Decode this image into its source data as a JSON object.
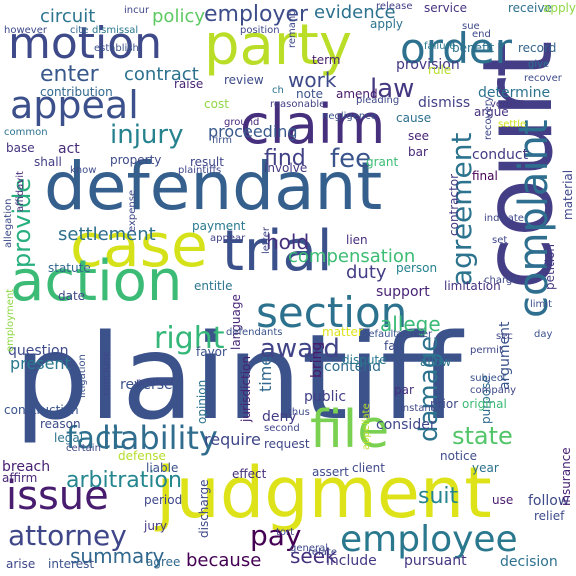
{
  "words": [
    {
      "text": "plaintiff",
      "color": "#3b528b"
    },
    {
      "text": "defendant",
      "color": "#355f8d"
    },
    {
      "text": "judgment",
      "color": "#dde318"
    },
    {
      "text": "court",
      "color": "#433e85"
    },
    {
      "text": "case",
      "color": "#d5e21a"
    },
    {
      "text": "trial",
      "color": "#3b518b"
    },
    {
      "text": "action",
      "color": "#3bbb75"
    },
    {
      "text": "claim",
      "color": "#46307e"
    },
    {
      "text": "party",
      "color": "#bade28"
    },
    {
      "text": "motion",
      "color": "#3e4a89"
    },
    {
      "text": "appeal",
      "color": "#3c508b"
    },
    {
      "text": "section",
      "color": "#2c728e"
    },
    {
      "text": "file",
      "color": "#7ad151"
    },
    {
      "text": "order",
      "color": "#2d718e"
    },
    {
      "text": "employee",
      "color": "#2a788e"
    },
    {
      "text": "issue",
      "color": "#481c6e"
    },
    {
      "text": "liability",
      "color": "#2f6c8e"
    },
    {
      "text": "complaint",
      "color": "#2e6e8e"
    },
    {
      "text": "agreement",
      "color": "#2c738e"
    },
    {
      "text": "damage",
      "color": "#2c738e"
    },
    {
      "text": "attorney",
      "color": "#3f4788"
    },
    {
      "text": "fact",
      "color": "#2e6f8e"
    },
    {
      "text": "right",
      "color": "#35b779"
    },
    {
      "text": "provide",
      "color": "#29af7f"
    },
    {
      "text": "award",
      "color": "#414487"
    },
    {
      "text": "injury",
      "color": "#26828e"
    },
    {
      "text": "fee",
      "color": "#3a548c"
    },
    {
      "text": "law",
      "color": "#453781"
    },
    {
      "text": "state",
      "color": "#52c569"
    },
    {
      "text": "pay",
      "color": "#440154"
    },
    {
      "text": "settlement",
      "color": "#2d708e"
    },
    {
      "text": "arbitration",
      "color": "#24868e"
    },
    {
      "text": "summary",
      "color": "#31688e"
    },
    {
      "text": "enter",
      "color": "#38588c"
    },
    {
      "text": "find",
      "color": "#424186"
    },
    {
      "text": "hold",
      "color": "#46307e"
    },
    {
      "text": "work",
      "color": "#3e4989"
    },
    {
      "text": "employer",
      "color": "#3d4d8a"
    },
    {
      "text": "policy",
      "color": "#5ec962"
    },
    {
      "text": "evidence",
      "color": "#2c728e"
    },
    {
      "text": "circuit",
      "color": "#2b758e"
    },
    {
      "text": "contract",
      "color": "#2c728e"
    },
    {
      "text": "compensation",
      "color": "#3dbc74"
    },
    {
      "text": "duty",
      "color": "#433e85"
    },
    {
      "text": "allege",
      "color": "#3aba76"
    },
    {
      "text": "because",
      "color": "#440154"
    },
    {
      "text": "seek",
      "color": "#46307e"
    },
    {
      "text": "require",
      "color": "#3f4788"
    },
    {
      "text": "time",
      "color": "#31688e"
    },
    {
      "text": "present",
      "color": "#2a788e"
    },
    {
      "text": "suit",
      "color": "#25848e"
    },
    {
      "text": "proceeding",
      "color": "#38598c"
    },
    {
      "text": "support",
      "color": "#482475"
    },
    {
      "text": "question",
      "color": "#3e4a89"
    },
    {
      "text": "reverse",
      "color": "#3b528b"
    },
    {
      "text": "contend",
      "color": "#2f6c8e"
    },
    {
      "text": "public",
      "color": "#424086"
    },
    {
      "text": "consider",
      "color": "#3f4889"
    },
    {
      "text": "provision",
      "color": "#453882"
    },
    {
      "text": "determine",
      "color": "#2c728e"
    },
    {
      "text": "dismiss",
      "color": "#424186"
    },
    {
      "text": "conduct",
      "color": "#443a83"
    },
    {
      "text": "benefit",
      "color": "#2c728e"
    },
    {
      "text": "record",
      "color": "#33638d"
    },
    {
      "text": "service",
      "color": "#46337f"
    },
    {
      "text": "receive",
      "color": "#2e6f8e"
    },
    {
      "text": "deny",
      "color": "#433d84"
    },
    {
      "text": "bring",
      "color": "#48186a"
    },
    {
      "text": "decision",
      "color": "#2d718e"
    },
    {
      "text": "pursuant",
      "color": "#453581"
    },
    {
      "text": "include",
      "color": "#443983"
    },
    {
      "text": "interest",
      "color": "#3b528b"
    },
    {
      "text": "arise",
      "color": "#3f4788"
    },
    {
      "text": "agree",
      "color": "#31688e"
    },
    {
      "text": "follow",
      "color": "#3e4989"
    },
    {
      "text": "breach",
      "color": "#482173"
    },
    {
      "text": "affirm",
      "color": "#482878"
    },
    {
      "text": "legal",
      "color": "#2c728e"
    },
    {
      "text": "reason",
      "color": "#3e4c8a"
    },
    {
      "text": "construction",
      "color": "#3a548c"
    },
    {
      "text": "statute",
      "color": "#31688e"
    },
    {
      "text": "date",
      "color": "#3f4889"
    },
    {
      "text": "property",
      "color": "#3e4a89"
    },
    {
      "text": "shall",
      "color": "#423f85"
    },
    {
      "text": "act",
      "color": "#472c7a"
    },
    {
      "text": "base",
      "color": "#46337f"
    },
    {
      "text": "cost",
      "color": "#8fd744"
    },
    {
      "text": "raise",
      "color": "#482576"
    },
    {
      "text": "contribution",
      "color": "#31688e"
    },
    {
      "text": "review",
      "color": "#3e4c8a"
    },
    {
      "text": "note",
      "color": "#3b528b"
    },
    {
      "text": "amend",
      "color": "#481a6c"
    },
    {
      "text": "term",
      "color": "#481f70"
    },
    {
      "text": "apply",
      "color": "#2c728e"
    },
    {
      "text": "release",
      "color": "#424086"
    },
    {
      "text": "cause",
      "color": "#2d708e"
    },
    {
      "text": "see",
      "color": "#482475"
    },
    {
      "text": "bar",
      "color": "#482878"
    },
    {
      "text": "final",
      "color": "#440154"
    },
    {
      "text": "argue",
      "color": "#46337f"
    },
    {
      "text": "verdict",
      "color": "#443983"
    },
    {
      "text": "settle",
      "color": "#d0e11c"
    },
    {
      "text": "rule",
      "color": "#b5de2b"
    },
    {
      "text": "failure",
      "color": "#2a788e"
    },
    {
      "text": "give",
      "color": "#2c738e"
    },
    {
      "text": "recover",
      "color": "#3e4a89"
    },
    {
      "text": "grant",
      "color": "#3dbc74"
    },
    {
      "text": "involve",
      "color": "#453882"
    },
    {
      "text": "result",
      "color": "#3f4889"
    },
    {
      "text": "payment",
      "color": "#2a788e"
    },
    {
      "text": "appear",
      "color": "#414487"
    },
    {
      "text": "entitle",
      "color": "#2b758e"
    },
    {
      "text": "favor",
      "color": "#3b528b"
    },
    {
      "text": "language",
      "color": "#482878"
    },
    {
      "text": "opinion",
      "color": "#2c728e"
    },
    {
      "text": "jurisdiction",
      "color": "#482173"
    },
    {
      "text": "person",
      "color": "#26828e"
    },
    {
      "text": "lien",
      "color": "#472d7b"
    },
    {
      "text": "limitation",
      "color": "#46337f"
    },
    {
      "text": "allow",
      "color": "#2c728e"
    },
    {
      "text": "fail",
      "color": "#3e4c8a"
    },
    {
      "text": "dispute",
      "color": "#2a788e"
    },
    {
      "text": "matter",
      "color": "#dde318"
    },
    {
      "text": "par",
      "color": "#46307e"
    },
    {
      "text": "prior",
      "color": "#3e4989"
    },
    {
      "text": "purpose",
      "color": "#2f6c8e"
    },
    {
      "text": "argument",
      "color": "#3a548c"
    },
    {
      "text": "limit",
      "color": "#3b528b"
    },
    {
      "text": "petition",
      "color": "#443983"
    },
    {
      "text": "notice",
      "color": "#3e4c8a"
    },
    {
      "text": "insurance",
      "color": "#482173"
    },
    {
      "text": "request",
      "color": "#3f4788"
    },
    {
      "text": "defense",
      "color": "#b5de2b"
    },
    {
      "text": "liable",
      "color": "#3b528b"
    },
    {
      "text": "discharge",
      "color": "#3f4788"
    },
    {
      "text": "effect",
      "color": "#46307e"
    },
    {
      "text": "assert",
      "color": "#3e4c8a"
    },
    {
      "text": "client",
      "color": "#3f4889"
    },
    {
      "text": "relate",
      "color": "#3f4889"
    },
    {
      "text": "year",
      "color": "#2c728e"
    },
    {
      "text": "jury",
      "color": "#453882"
    },
    {
      "text": "period",
      "color": "#3f4788"
    },
    {
      "text": "use",
      "color": "#481a6c"
    },
    {
      "text": "relief",
      "color": "#3e4c8a"
    },
    {
      "text": "default",
      "color": "#3b528b"
    },
    {
      "text": "answer",
      "color": "#3e4c8a"
    },
    {
      "text": "instant",
      "color": "#3e4989"
    },
    {
      "text": "company",
      "color": "#3f4788"
    },
    {
      "text": "subject",
      "color": "#3b528b"
    },
    {
      "text": "permit",
      "color": "#3f4788"
    },
    {
      "text": "day",
      "color": "#3b528b"
    },
    {
      "text": "charge",
      "color": "#3e4a89"
    },
    {
      "text": "original",
      "color": "#3bbb75"
    },
    {
      "text": "material",
      "color": "#3f4889"
    },
    {
      "text": "indicate",
      "color": "#3f4788"
    },
    {
      "text": "recovery",
      "color": "#3f4889"
    },
    {
      "text": "contractor",
      "color": "#443983"
    },
    {
      "text": "ground",
      "color": "#482878"
    },
    {
      "text": "firm",
      "color": "#3b528b"
    },
    {
      "text": "negligence",
      "color": "#3b528b"
    },
    {
      "text": "pleading",
      "color": "#3f4889"
    },
    {
      "text": "reasonable",
      "color": "#423f85"
    },
    {
      "text": "remand",
      "color": "#3e4989"
    },
    {
      "text": "position",
      "color": "#3f4889"
    },
    {
      "text": "establish",
      "color": "#3b528b"
    },
    {
      "text": "dismissal",
      "color": "#2a788e"
    },
    {
      "text": "cite",
      "color": "#31688e"
    },
    {
      "text": "however",
      "color": "#3e4989"
    },
    {
      "text": "common",
      "color": "#2c728e"
    },
    {
      "text": "affidavit",
      "color": "#472d7b"
    },
    {
      "text": "employment",
      "color": "#8fd744"
    },
    {
      "text": "allegation",
      "color": "#3e4989"
    },
    {
      "text": "conclude",
      "color": "#3f4788"
    },
    {
      "text": "litigation",
      "color": "#3b528b"
    },
    {
      "text": "second",
      "color": "#3f4788"
    },
    {
      "text": "general",
      "color": "#3e4989"
    },
    {
      "text": "product",
      "color": "#3e4989"
    },
    {
      "text": "certain",
      "color": "#3f4788"
    },
    {
      "text": "know",
      "color": "#3e4c8a"
    },
    {
      "text": "plaintiffs",
      "color": "#3f4889"
    },
    {
      "text": "defendants",
      "color": "#3b528b"
    },
    {
      "text": "letter",
      "color": "#3f4788"
    },
    {
      "text": "appellate",
      "color": "#bade28"
    },
    {
      "text": "thus",
      "color": "#3e4989"
    },
    {
      "text": "include",
      "color": "#482878"
    },
    {
      "text": "expense",
      "color": "#3f4889"
    },
    {
      "text": "ch",
      "color": "#2c728e"
    },
    {
      "text": "incur",
      "color": "#3f4889"
    },
    {
      "text": "set",
      "color": "#3f4788"
    },
    {
      "text": "sue",
      "color": "#3e4989"
    },
    {
      "text": "end",
      "color": "#3f4889"
    },
    {
      "text": "sec",
      "color": "#3f4788"
    },
    {
      "text": "tort",
      "color": "#3f4788"
    },
    {
      "text": "apply",
      "color": "#8fd744"
    }
  ]
}
